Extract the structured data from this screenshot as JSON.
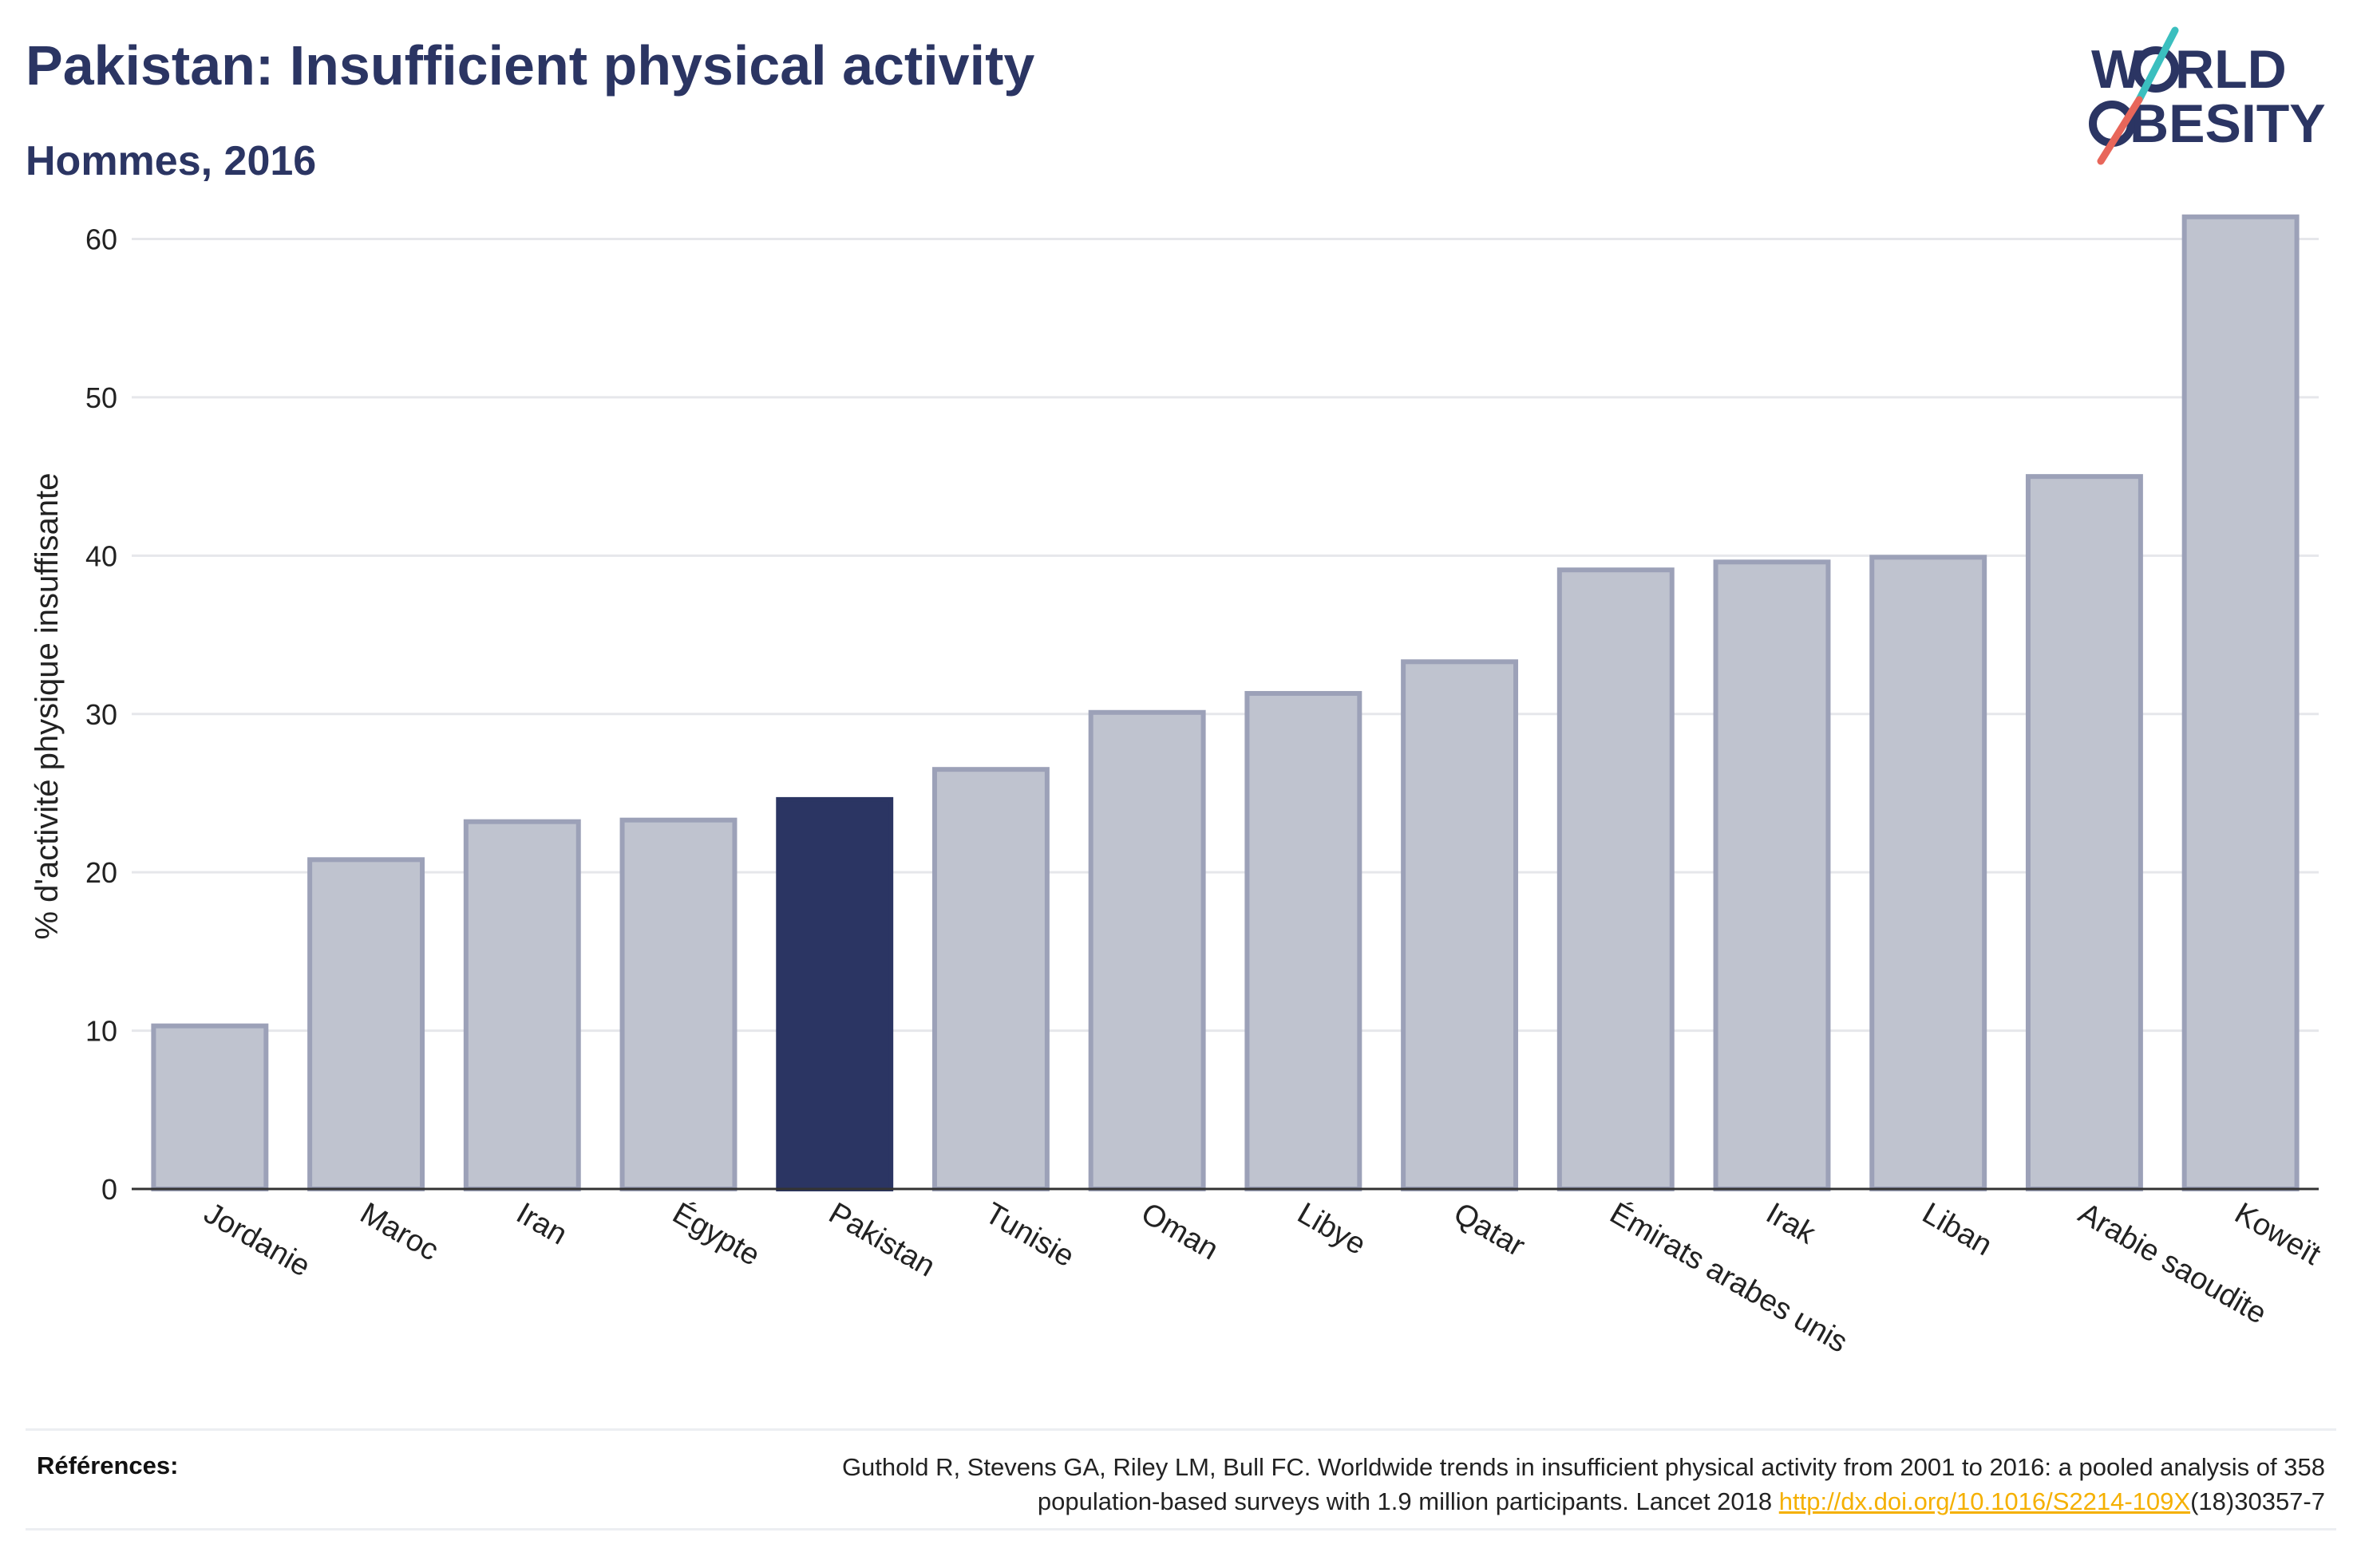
{
  "header": {
    "title": "Pakistan: Insufficient physical activity",
    "subtitle": "Hommes, 2016"
  },
  "logo": {
    "line1": "W",
    "line1b": "RLD",
    "line2": "BESITY",
    "colors": {
      "text": "#2b3563",
      "slash_top": "#3bbfbf",
      "slash_bottom": "#e8665a"
    }
  },
  "chart_data": {
    "type": "bar",
    "ylabel": "% d'activité physique insuffisante",
    "ylim": [
      0,
      63
    ],
    "yticks": [
      0,
      10,
      20,
      30,
      40,
      50,
      60
    ],
    "grid": true,
    "highlight": "Pakistan",
    "colors": {
      "bar": "#bfc3cf",
      "bar_border": "#9ca1b8",
      "highlight": "#2b3563",
      "grid": "#e6e7eb"
    },
    "categories": [
      "Jordanie",
      "Maroc",
      "Iran",
      "Égypte",
      "Pakistan",
      "Tunisie",
      "Oman",
      "Libye",
      "Qatar",
      "Émirats arabes unis",
      "Irak",
      "Liban",
      "Arabie saoudite",
      "Koweït"
    ],
    "values": [
      10.3,
      20.8,
      23.2,
      23.3,
      24.6,
      26.5,
      30.1,
      31.3,
      33.3,
      39.1,
      39.6,
      39.9,
      45.0,
      61.4
    ]
  },
  "references": {
    "label": "Références:",
    "line1": "Guthold R, Stevens GA, Riley LM, Bull FC. Worldwide trends in insufficient physical activity from 2001 to 2016: a pooled analysis of 358",
    "line2_prefix": "population-based surveys with 1.9 million participants. Lancet 2018 ",
    "link": "http://dx.doi.org/10.1016/S2214-109X",
    "line2_suffix": "(18)30357-7"
  }
}
